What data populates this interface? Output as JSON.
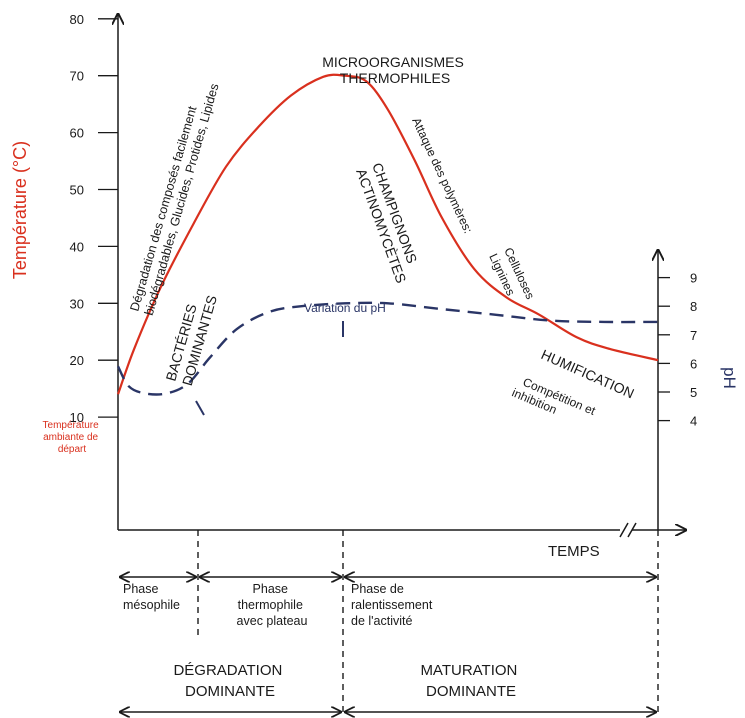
{
  "chart_data": {
    "type": "line",
    "y_left": {
      "label": "Température (°C)",
      "ticks": [
        10,
        20,
        30,
        40,
        50,
        60,
        70,
        80
      ],
      "range": [
        0,
        90
      ]
    },
    "y_right": {
      "label": "pH",
      "ticks": [
        4,
        5,
        6,
        7,
        8,
        9
      ],
      "range": [
        0.7,
        12
      ]
    },
    "x_axis_label": "TEMPS",
    "series": [
      {
        "color": "#d9301e",
        "points": [
          [
            0,
            14
          ],
          [
            0.03,
            22
          ],
          [
            0.08,
            33
          ],
          [
            0.14,
            44
          ],
          [
            0.2,
            54
          ],
          [
            0.26,
            61
          ],
          [
            0.32,
            66.5
          ],
          [
            0.38,
            69.8
          ],
          [
            0.42,
            70
          ],
          [
            0.46,
            69
          ],
          [
            0.5,
            64
          ],
          [
            0.55,
            55
          ],
          [
            0.6,
            45
          ],
          [
            0.66,
            36
          ],
          [
            0.72,
            31
          ],
          [
            0.78,
            28
          ],
          [
            0.85,
            24
          ],
          [
            0.91,
            22
          ],
          [
            1.0,
            20
          ]
        ]
      },
      {
        "dashed": true,
        "color": "#2a3566",
        "points": [
          [
            0,
            5.9
          ],
          [
            0.02,
            5.2
          ],
          [
            0.05,
            4.95
          ],
          [
            0.09,
            4.95
          ],
          [
            0.13,
            5.3
          ],
          [
            0.17,
            6.2
          ],
          [
            0.22,
            7.2
          ],
          [
            0.28,
            7.8
          ],
          [
            0.34,
            8.0
          ],
          [
            0.42,
            8.1
          ],
          [
            0.5,
            8.1
          ],
          [
            0.6,
            7.9
          ],
          [
            0.7,
            7.7
          ],
          [
            0.8,
            7.5
          ],
          [
            0.9,
            7.45
          ],
          [
            1.0,
            7.45
          ]
        ]
      }
    ],
    "annotations": {
      "microorganisms": [
        "MICROORGANISMES",
        "THERMOPHILES"
      ],
      "degradation": [
        "Dégradation des composés facilement",
        "biodégradables, Glucides, Protides, Lipides"
      ],
      "bacteria": [
        "BACTÉRIES",
        "DOMINANTES"
      ],
      "fungi": [
        "CHAMPIGNONS",
        "ACTINOMYCÈTES"
      ],
      "polymers": [
        "Attaque des polymères:",
        "Celluloses",
        "Lignines"
      ],
      "humification": "HUMIFICATION",
      "competition": [
        "Compétition et",
        "inhibition"
      ],
      "ph_variation": "Variation du pH",
      "ambient": [
        "Température",
        "ambiante de",
        "départ"
      ]
    },
    "phases": [
      {
        "lines": [
          "Phase",
          "mésophile"
        ]
      },
      {
        "lines": [
          "Phase",
          "thermophile",
          "avec plateau"
        ]
      },
      {
        "lines": [
          "Phase de",
          "ralentissement",
          "de l'activité"
        ]
      }
    ],
    "stages": [
      {
        "lines": [
          "DÉGRADATION",
          "DOMINANTE"
        ]
      },
      {
        "lines": [
          "MATURATION",
          "DOMINANTE"
        ]
      }
    ]
  }
}
